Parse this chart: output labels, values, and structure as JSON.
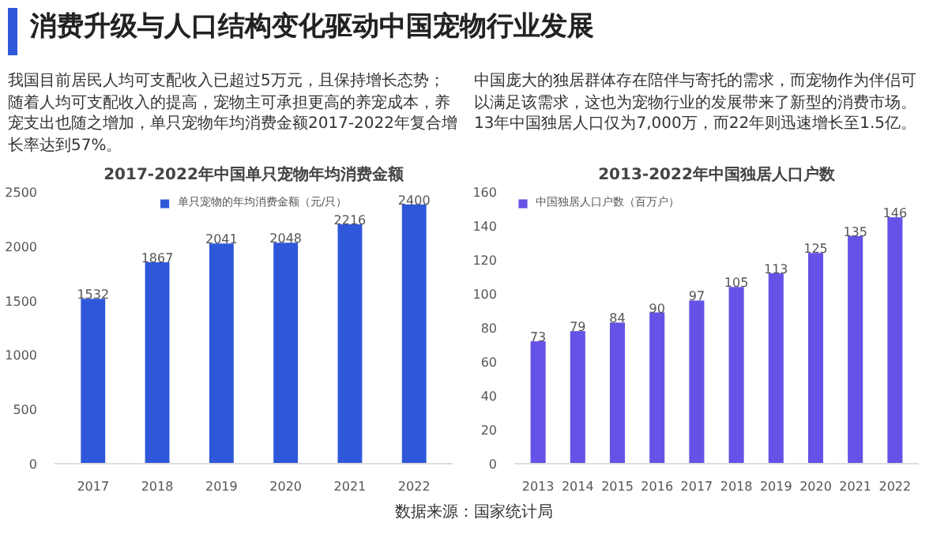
{
  "chart_data": [
    {
      "type": "other",
      "title": "消费升级与人口结构变化驱动中国宠物行业发展",
      "annotations": [
        "数据来源：国家统计局"
      ]
    },
    {
      "type": "bar",
      "title": "2017-2022年中国单只宠物年均消费金额",
      "annotations": [
        "我国目前居民人均可支配收入已超过5万元，且保持增长态势；随着人均可支配收入的提高，宠物主可承担更高的养宠成本，养宠支出也随之增加，单只宠物年均消费金额2017-2022年复合增长率达到57%。"
      ],
      "categories": [
        "2017",
        "2018",
        "2019",
        "2020",
        "2021",
        "2022"
      ],
      "series": [
        {
          "name": "单只宠物的年均消费金额（元/只）",
          "color": "#2f57d9",
          "values": [
            1532,
            1867,
            2041,
            2048,
            2216,
            2400
          ]
        }
      ],
      "ylim": [
        0,
        2500
      ],
      "yticks": [
        0,
        500,
        1000,
        1500,
        2000,
        2500
      ],
      "grid": false,
      "legend": "top",
      "data_labels": true
    },
    {
      "type": "bar",
      "title": "2013-2022年中国独居人口户数",
      "annotations": [
        "中国庞大的独居群体存在陪伴与寄托的需求，而宠物作为伴侣可以满足该需求，这也为宠物行业的发展带来了新型的消费市场。13年中国独居人口仅为7,000万，而22年则迅速增长至1.5亿。"
      ],
      "categories": [
        "2013",
        "2014",
        "2015",
        "2016",
        "2017",
        "2018",
        "2019",
        "2020",
        "2021",
        "2022"
      ],
      "series": [
        {
          "name": "中国独居人口户数（百万户）",
          "color": "#6552e6",
          "values": [
            73,
            79,
            84,
            90,
            97,
            105,
            113,
            125,
            135,
            146
          ]
        }
      ],
      "ylim": [
        0,
        160
      ],
      "yticks": [
        0,
        20,
        40,
        60,
        80,
        100,
        120,
        140,
        160
      ],
      "grid": false,
      "legend": "top left",
      "data_labels": true
    }
  ]
}
